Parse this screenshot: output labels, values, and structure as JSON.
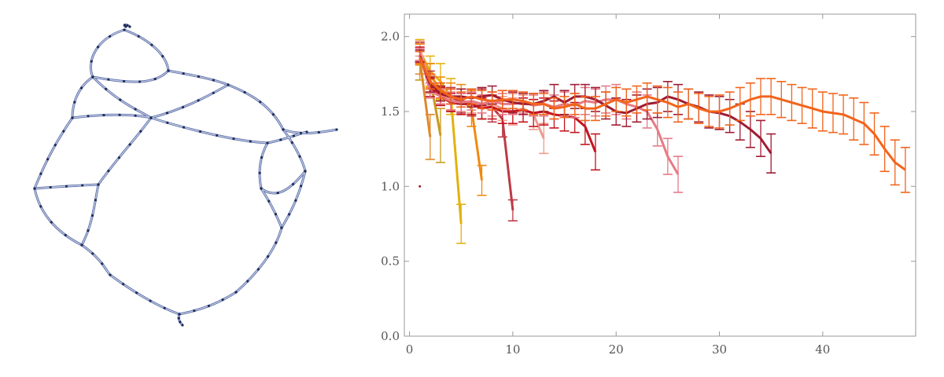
{
  "network_figure": {
    "node_color": "#1f2d5a",
    "edge_color": "#5b6fa8",
    "edge_fill": "#c9cfe6"
  },
  "chart_data": {
    "type": "line",
    "title": "",
    "xlabel": "",
    "ylabel": "",
    "xlim": [
      -0.5,
      49
    ],
    "ylim": [
      0,
      2.15
    ],
    "xticks": [
      0,
      10,
      20,
      30,
      40
    ],
    "yticks": [
      0.0,
      0.5,
      1.0,
      1.5,
      2.0
    ],
    "ytick_labels": [
      "0.0",
      "0.5",
      "1.0",
      "1.5",
      "2.0"
    ],
    "frame": true,
    "grid": false,
    "legend": "none",
    "error_bars": true,
    "series": [
      {
        "color": "#a01c2a",
        "points": [
          [
            1,
            1.0,
            0.0
          ]
        ]
      },
      {
        "color": "#e0892c",
        "points": [
          [
            1,
            1.85,
            0.1
          ],
          [
            2,
            1.33,
            0.15
          ]
        ]
      },
      {
        "color": "#c99a1e",
        "points": [
          [
            1,
            1.83,
            0.12
          ],
          [
            2,
            1.72,
            0.1
          ],
          [
            3,
            1.34,
            0.18
          ]
        ]
      },
      {
        "color": "#e3b10e",
        "points": [
          [
            1,
            1.9,
            0.08
          ],
          [
            2,
            1.77,
            0.1
          ],
          [
            3,
            1.7,
            0.12
          ],
          [
            4,
            1.6,
            0.12
          ],
          [
            5,
            0.75,
            0.13
          ]
        ]
      },
      {
        "color": "#f08a10",
        "points": [
          [
            1,
            1.88,
            0.07
          ],
          [
            2,
            1.74,
            0.08
          ],
          [
            3,
            1.65,
            0.08
          ],
          [
            4,
            1.6,
            0.09
          ],
          [
            5,
            1.58,
            0.1
          ],
          [
            6,
            1.52,
            0.12
          ],
          [
            7,
            1.04,
            0.1
          ]
        ]
      },
      {
        "color": "#bd3a45",
        "points": [
          [
            1,
            1.9,
            0.06
          ],
          [
            2,
            1.7,
            0.07
          ],
          [
            3,
            1.62,
            0.07
          ],
          [
            4,
            1.58,
            0.08
          ],
          [
            5,
            1.57,
            0.08
          ],
          [
            6,
            1.56,
            0.09
          ],
          [
            7,
            1.55,
            0.1
          ],
          [
            8,
            1.53,
            0.1
          ],
          [
            9,
            1.45,
            0.12
          ],
          [
            10,
            0.84,
            0.07
          ]
        ]
      },
      {
        "color": "#ef9a8c",
        "points": [
          [
            1,
            1.92,
            0.05
          ],
          [
            2,
            1.68,
            0.06
          ],
          [
            3,
            1.6,
            0.06
          ],
          [
            4,
            1.58,
            0.07
          ],
          [
            5,
            1.55,
            0.07
          ],
          [
            6,
            1.56,
            0.07
          ],
          [
            7,
            1.53,
            0.08
          ],
          [
            8,
            1.55,
            0.08
          ],
          [
            9,
            1.52,
            0.08
          ],
          [
            10,
            1.5,
            0.09
          ],
          [
            11,
            1.52,
            0.09
          ],
          [
            12,
            1.48,
            0.1
          ],
          [
            13,
            1.32,
            0.1
          ]
        ]
      },
      {
        "color": "#c4141e",
        "points": [
          [
            1,
            1.88,
            0.05
          ],
          [
            2,
            1.66,
            0.06
          ],
          [
            3,
            1.6,
            0.06
          ],
          [
            4,
            1.56,
            0.06
          ],
          [
            5,
            1.55,
            0.07
          ],
          [
            6,
            1.55,
            0.07
          ],
          [
            7,
            1.52,
            0.07
          ],
          [
            8,
            1.53,
            0.08
          ],
          [
            9,
            1.5,
            0.08
          ],
          [
            10,
            1.5,
            0.08
          ],
          [
            11,
            1.51,
            0.08
          ],
          [
            12,
            1.49,
            0.09
          ],
          [
            13,
            1.5,
            0.09
          ],
          [
            14,
            1.48,
            0.09
          ],
          [
            15,
            1.47,
            0.1
          ],
          [
            16,
            1.46,
            0.1
          ],
          [
            17,
            1.4,
            0.12
          ],
          [
            18,
            1.23,
            0.12
          ]
        ]
      },
      {
        "color": "#e67a86",
        "points": [
          [
            1,
            1.88,
            0.04
          ],
          [
            2,
            1.64,
            0.05
          ],
          [
            3,
            1.6,
            0.05
          ],
          [
            4,
            1.57,
            0.06
          ],
          [
            5,
            1.56,
            0.06
          ],
          [
            6,
            1.57,
            0.06
          ],
          [
            7,
            1.55,
            0.06
          ],
          [
            8,
            1.57,
            0.06
          ],
          [
            9,
            1.55,
            0.07
          ],
          [
            10,
            1.55,
            0.07
          ],
          [
            11,
            1.56,
            0.07
          ],
          [
            12,
            1.54,
            0.07
          ],
          [
            13,
            1.55,
            0.08
          ],
          [
            14,
            1.53,
            0.08
          ],
          [
            15,
            1.55,
            0.08
          ],
          [
            16,
            1.54,
            0.08
          ],
          [
            17,
            1.57,
            0.09
          ],
          [
            18,
            1.56,
            0.09
          ],
          [
            19,
            1.58,
            0.09
          ],
          [
            20,
            1.58,
            0.1
          ],
          [
            21,
            1.55,
            0.1
          ],
          [
            22,
            1.53,
            0.1
          ],
          [
            23,
            1.5,
            0.11
          ],
          [
            24,
            1.38,
            0.11
          ],
          [
            25,
            1.2,
            0.12
          ],
          [
            26,
            1.08,
            0.12
          ]
        ]
      },
      {
        "color": "#9e1c32",
        "points": [
          [
            1,
            1.87,
            0.04
          ],
          [
            2,
            1.68,
            0.05
          ],
          [
            3,
            1.62,
            0.05
          ],
          [
            4,
            1.6,
            0.05
          ],
          [
            5,
            1.6,
            0.05
          ],
          [
            6,
            1.59,
            0.06
          ],
          [
            7,
            1.6,
            0.06
          ],
          [
            8,
            1.61,
            0.06
          ],
          [
            9,
            1.58,
            0.06
          ],
          [
            10,
            1.56,
            0.07
          ],
          [
            11,
            1.55,
            0.07
          ],
          [
            12,
            1.55,
            0.07
          ],
          [
            13,
            1.57,
            0.07
          ],
          [
            14,
            1.6,
            0.08
          ],
          [
            15,
            1.56,
            0.08
          ],
          [
            16,
            1.6,
            0.08
          ],
          [
            17,
            1.6,
            0.08
          ],
          [
            18,
            1.58,
            0.08
          ],
          [
            19,
            1.54,
            0.09
          ],
          [
            20,
            1.5,
            0.09
          ],
          [
            21,
            1.49,
            0.09
          ],
          [
            22,
            1.52,
            0.09
          ],
          [
            23,
            1.55,
            0.1
          ],
          [
            24,
            1.56,
            0.1
          ],
          [
            25,
            1.6,
            0.1
          ],
          [
            26,
            1.58,
            0.1
          ],
          [
            27,
            1.55,
            0.1
          ],
          [
            28,
            1.53,
            0.1
          ],
          [
            29,
            1.5,
            0.11
          ],
          [
            30,
            1.49,
            0.11
          ],
          [
            31,
            1.47,
            0.11
          ],
          [
            32,
            1.43,
            0.12
          ],
          [
            33,
            1.38,
            0.12
          ],
          [
            34,
            1.32,
            0.12
          ],
          [
            35,
            1.22,
            0.13
          ]
        ]
      },
      {
        "color": "#f2641b",
        "points": [
          [
            1,
            1.86,
            0.04
          ],
          [
            2,
            1.7,
            0.05
          ],
          [
            3,
            1.64,
            0.05
          ],
          [
            4,
            1.6,
            0.05
          ],
          [
            5,
            1.58,
            0.05
          ],
          [
            6,
            1.6,
            0.05
          ],
          [
            7,
            1.58,
            0.06
          ],
          [
            8,
            1.57,
            0.06
          ],
          [
            9,
            1.58,
            0.06
          ],
          [
            10,
            1.58,
            0.06
          ],
          [
            11,
            1.57,
            0.06
          ],
          [
            12,
            1.55,
            0.07
          ],
          [
            13,
            1.55,
            0.07
          ],
          [
            14,
            1.52,
            0.07
          ],
          [
            15,
            1.53,
            0.07
          ],
          [
            16,
            1.55,
            0.07
          ],
          [
            17,
            1.52,
            0.08
          ],
          [
            18,
            1.52,
            0.08
          ],
          [
            19,
            1.55,
            0.08
          ],
          [
            20,
            1.58,
            0.08
          ],
          [
            21,
            1.56,
            0.09
          ],
          [
            22,
            1.58,
            0.09
          ],
          [
            23,
            1.6,
            0.09
          ],
          [
            24,
            1.58,
            0.09
          ],
          [
            25,
            1.56,
            0.1
          ],
          [
            26,
            1.53,
            0.1
          ],
          [
            27,
            1.55,
            0.1
          ],
          [
            28,
            1.52,
            0.1
          ],
          [
            29,
            1.5,
            0.1
          ],
          [
            30,
            1.5,
            0.11
          ],
          [
            31,
            1.52,
            0.11
          ],
          [
            32,
            1.55,
            0.11
          ],
          [
            33,
            1.58,
            0.11
          ],
          [
            34,
            1.6,
            0.12
          ],
          [
            35,
            1.6,
            0.12
          ],
          [
            36,
            1.58,
            0.12
          ],
          [
            37,
            1.56,
            0.12
          ],
          [
            38,
            1.54,
            0.12
          ],
          [
            39,
            1.52,
            0.13
          ],
          [
            40,
            1.5,
            0.13
          ],
          [
            41,
            1.49,
            0.13
          ],
          [
            42,
            1.48,
            0.13
          ],
          [
            43,
            1.45,
            0.14
          ],
          [
            44,
            1.42,
            0.14
          ],
          [
            45,
            1.35,
            0.14
          ],
          [
            46,
            1.25,
            0.15
          ],
          [
            47,
            1.16,
            0.15
          ],
          [
            48,
            1.11,
            0.15
          ]
        ]
      }
    ]
  }
}
